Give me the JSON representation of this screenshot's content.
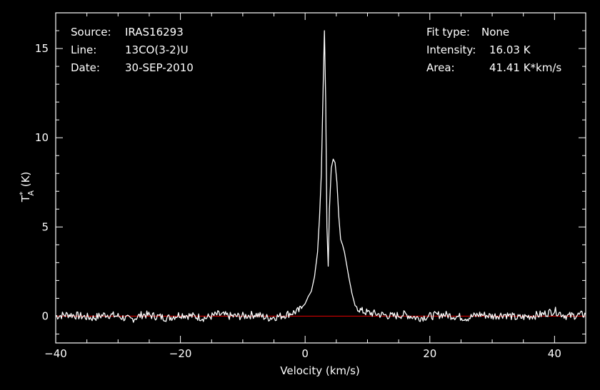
{
  "header": {
    "left": [
      {
        "label": "Source:",
        "value": "IRAS16293"
      },
      {
        "label": "Line:",
        "value": "13CO(3-2)U"
      },
      {
        "label": "Date:",
        "value": "30-SEP-2010"
      }
    ],
    "right": [
      {
        "label": "Fit type:",
        "value": "None"
      },
      {
        "label": "Intensity:",
        "value": "16.03 K"
      },
      {
        "label": "Area:",
        "value": "41.41 K*km/s"
      }
    ]
  },
  "colors": {
    "background": "#000000",
    "axes": "#ffffff",
    "spectrum": "#ffffff",
    "baseline": "#cc0000"
  },
  "chart_data": {
    "type": "line",
    "title": "",
    "xlabel": "Velocity (km/s)",
    "ylabel_main": "T",
    "ylabel_super": "*",
    "ylabel_sub": "A",
    "ylabel_unit": " (K)",
    "xlim": [
      -40,
      45
    ],
    "ylim": [
      -1.5,
      17
    ],
    "xticks": [
      -40,
      -20,
      0,
      20,
      40
    ],
    "yticks": [
      0,
      5,
      10,
      15
    ],
    "baseline": 0,
    "series": [
      {
        "x": [
          -40,
          -38,
          -36,
          -34,
          -32,
          -30,
          -28,
          -26,
          -24,
          -22,
          -20,
          -18,
          -16,
          -14,
          -12,
          -10,
          -8,
          -6,
          -4,
          -2,
          -1,
          0,
          0.5,
          1,
          1.5,
          2,
          2.3,
          2.6,
          2.9,
          3.1,
          3.3,
          3.5,
          3.7,
          3.9,
          4.2,
          4.5,
          4.8,
          5.1,
          5.4,
          5.7,
          6,
          6.3,
          6.6,
          7,
          7.5,
          8,
          9,
          10,
          12,
          14,
          16,
          18,
          20,
          22,
          24,
          26,
          28,
          30,
          32,
          34,
          36,
          38,
          40,
          42,
          45
        ],
        "y": [
          0,
          0.1,
          0,
          -0.1,
          0.1,
          0,
          -0.2,
          0.1,
          0,
          -0.1,
          0.1,
          0,
          -0.1,
          0.1,
          0,
          0,
          0.1,
          -0.1,
          0,
          0.2,
          0.3,
          0.7,
          1.1,
          1.4,
          2.2,
          3.6,
          5.5,
          8.0,
          13.0,
          16.0,
          12.0,
          5.0,
          2.8,
          6.0,
          8.3,
          8.8,
          8.6,
          7.5,
          5.6,
          4.3,
          4.0,
          3.6,
          3.0,
          2.2,
          1.3,
          0.6,
          0.3,
          0.2,
          0.1,
          0,
          0.1,
          -0.1,
          0,
          0.1,
          0,
          -0.1,
          0.1,
          0,
          0.1,
          -0.1,
          0,
          0.1,
          0.3,
          0,
          0.1
        ]
      }
    ]
  }
}
